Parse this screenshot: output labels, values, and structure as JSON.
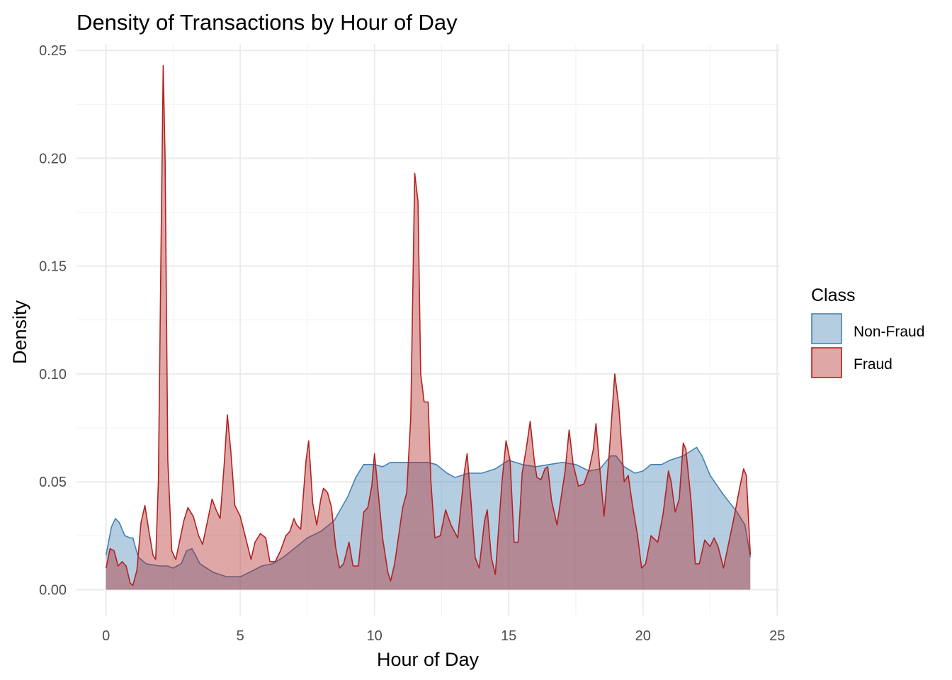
{
  "chart_data": {
    "type": "area",
    "title": "Density of Transactions by Hour of Day",
    "xlabel": "Hour of Day",
    "ylabel": "Density",
    "xlim": [
      -1.1,
      25.1
    ],
    "ylim": [
      -0.012,
      0.253
    ],
    "x_ticks": [
      0,
      5,
      10,
      15,
      20,
      25
    ],
    "x_tick_labels": [
      "0",
      "5",
      "10",
      "15",
      "20",
      "25"
    ],
    "y_ticks": [
      0,
      0.05,
      0.1,
      0.15,
      0.2,
      0.25
    ],
    "y_tick_labels": [
      "0.00",
      "0.05",
      "0.10",
      "0.15",
      "0.20",
      "0.25"
    ],
    "grid": true,
    "legend": {
      "title": "Class",
      "position": "right"
    },
    "series": [
      {
        "name": "Non-Fraud",
        "fill": "#4682b4",
        "stroke": "#4682b4",
        "points": [
          [
            0,
            0.016
          ],
          [
            0.2,
            0.029
          ],
          [
            0.35,
            0.033
          ],
          [
            0.5,
            0.031
          ],
          [
            0.7,
            0.025
          ],
          [
            0.9,
            0.024
          ],
          [
            1.0,
            0.024
          ],
          [
            1.2,
            0.015
          ],
          [
            1.5,
            0.012
          ],
          [
            2.0,
            0.011
          ],
          [
            2.3,
            0.011
          ],
          [
            2.5,
            0.01
          ],
          [
            2.8,
            0.012
          ],
          [
            3.0,
            0.018
          ],
          [
            3.2,
            0.019
          ],
          [
            3.5,
            0.012
          ],
          [
            4.0,
            0.008
          ],
          [
            4.5,
            0.006
          ],
          [
            5.0,
            0.006
          ],
          [
            5.5,
            0.009
          ],
          [
            5.8,
            0.011
          ],
          [
            6.2,
            0.012
          ],
          [
            6.6,
            0.015
          ],
          [
            7.0,
            0.019
          ],
          [
            7.5,
            0.024
          ],
          [
            8.0,
            0.027
          ],
          [
            8.5,
            0.032
          ],
          [
            9.0,
            0.043
          ],
          [
            9.3,
            0.052
          ],
          [
            9.6,
            0.058
          ],
          [
            10.0,
            0.058
          ],
          [
            10.3,
            0.057
          ],
          [
            10.6,
            0.059
          ],
          [
            11.0,
            0.059
          ],
          [
            11.5,
            0.059
          ],
          [
            12.0,
            0.059
          ],
          [
            12.3,
            0.058
          ],
          [
            12.7,
            0.054
          ],
          [
            13.0,
            0.052
          ],
          [
            13.5,
            0.054
          ],
          [
            14.0,
            0.054
          ],
          [
            14.5,
            0.056
          ],
          [
            15.0,
            0.06
          ],
          [
            15.5,
            0.058
          ],
          [
            16.0,
            0.057
          ],
          [
            16.5,
            0.058
          ],
          [
            17.0,
            0.059
          ],
          [
            17.5,
            0.058
          ],
          [
            18.0,
            0.055
          ],
          [
            18.4,
            0.056
          ],
          [
            18.8,
            0.062
          ],
          [
            19.0,
            0.062
          ],
          [
            19.3,
            0.057
          ],
          [
            19.7,
            0.054
          ],
          [
            20.0,
            0.055
          ],
          [
            20.3,
            0.058
          ],
          [
            20.7,
            0.058
          ],
          [
            21.0,
            0.06
          ],
          [
            21.5,
            0.062
          ],
          [
            22.0,
            0.066
          ],
          [
            22.2,
            0.062
          ],
          [
            22.5,
            0.053
          ],
          [
            23.0,
            0.044
          ],
          [
            23.5,
            0.036
          ],
          [
            23.8,
            0.03
          ],
          [
            24.0,
            0.015
          ]
        ]
      },
      {
        "name": "Fraud",
        "fill": "#b22222",
        "stroke": "#b22222",
        "points": [
          [
            0,
            0.01
          ],
          [
            0.15,
            0.019
          ],
          [
            0.3,
            0.018
          ],
          [
            0.45,
            0.011
          ],
          [
            0.6,
            0.013
          ],
          [
            0.75,
            0.011
          ],
          [
            0.9,
            0.003
          ],
          [
            1.0,
            0.002
          ],
          [
            1.15,
            0.009
          ],
          [
            1.3,
            0.031
          ],
          [
            1.45,
            0.039
          ],
          [
            1.6,
            0.027
          ],
          [
            1.75,
            0.016
          ],
          [
            1.85,
            0.014
          ],
          [
            1.95,
            0.05
          ],
          [
            2.05,
            0.16
          ],
          [
            2.13,
            0.243
          ],
          [
            2.2,
            0.2
          ],
          [
            2.3,
            0.06
          ],
          [
            2.45,
            0.018
          ],
          [
            2.6,
            0.014
          ],
          [
            2.75,
            0.023
          ],
          [
            2.9,
            0.032
          ],
          [
            3.05,
            0.038
          ],
          [
            3.25,
            0.034
          ],
          [
            3.45,
            0.025
          ],
          [
            3.6,
            0.021
          ],
          [
            3.8,
            0.033
          ],
          [
            3.95,
            0.042
          ],
          [
            4.1,
            0.037
          ],
          [
            4.25,
            0.033
          ],
          [
            4.4,
            0.058
          ],
          [
            4.52,
            0.081
          ],
          [
            4.65,
            0.064
          ],
          [
            4.8,
            0.039
          ],
          [
            5.0,
            0.034
          ],
          [
            5.2,
            0.024
          ],
          [
            5.4,
            0.014
          ],
          [
            5.55,
            0.022
          ],
          [
            5.75,
            0.026
          ],
          [
            5.95,
            0.024
          ],
          [
            6.1,
            0.013
          ],
          [
            6.3,
            0.013
          ],
          [
            6.5,
            0.018
          ],
          [
            6.7,
            0.025
          ],
          [
            6.85,
            0.027
          ],
          [
            7.0,
            0.033
          ],
          [
            7.1,
            0.03
          ],
          [
            7.25,
            0.028
          ],
          [
            7.45,
            0.06
          ],
          [
            7.55,
            0.069
          ],
          [
            7.7,
            0.04
          ],
          [
            7.85,
            0.03
          ],
          [
            8.0,
            0.042
          ],
          [
            8.1,
            0.047
          ],
          [
            8.25,
            0.045
          ],
          [
            8.4,
            0.038
          ],
          [
            8.55,
            0.02
          ],
          [
            8.7,
            0.01
          ],
          [
            8.85,
            0.012
          ],
          [
            9.05,
            0.022
          ],
          [
            9.2,
            0.011
          ],
          [
            9.4,
            0.011
          ],
          [
            9.6,
            0.036
          ],
          [
            9.75,
            0.038
          ],
          [
            9.9,
            0.048
          ],
          [
            10.0,
            0.063
          ],
          [
            10.1,
            0.05
          ],
          [
            10.3,
            0.024
          ],
          [
            10.5,
            0.008
          ],
          [
            10.6,
            0.004
          ],
          [
            10.75,
            0.012
          ],
          [
            10.9,
            0.025
          ],
          [
            11.05,
            0.038
          ],
          [
            11.2,
            0.045
          ],
          [
            11.35,
            0.08
          ],
          [
            11.5,
            0.193
          ],
          [
            11.62,
            0.18
          ],
          [
            11.72,
            0.1
          ],
          [
            11.85,
            0.087
          ],
          [
            12.0,
            0.087
          ],
          [
            12.1,
            0.05
          ],
          [
            12.25,
            0.024
          ],
          [
            12.45,
            0.025
          ],
          [
            12.65,
            0.037
          ],
          [
            12.85,
            0.03
          ],
          [
            13.1,
            0.024
          ],
          [
            13.35,
            0.055
          ],
          [
            13.45,
            0.063
          ],
          [
            13.6,
            0.04
          ],
          [
            13.75,
            0.015
          ],
          [
            13.9,
            0.01
          ],
          [
            14.1,
            0.032
          ],
          [
            14.2,
            0.037
          ],
          [
            14.35,
            0.015
          ],
          [
            14.5,
            0.007
          ],
          [
            14.75,
            0.05
          ],
          [
            14.9,
            0.069
          ],
          [
            15.05,
            0.06
          ],
          [
            15.2,
            0.022
          ],
          [
            15.35,
            0.022
          ],
          [
            15.5,
            0.054
          ],
          [
            15.65,
            0.065
          ],
          [
            15.8,
            0.078
          ],
          [
            15.95,
            0.06
          ],
          [
            16.05,
            0.052
          ],
          [
            16.2,
            0.051
          ],
          [
            16.35,
            0.056
          ],
          [
            16.45,
            0.057
          ],
          [
            16.6,
            0.041
          ],
          [
            16.8,
            0.03
          ],
          [
            17.1,
            0.055
          ],
          [
            17.25,
            0.074
          ],
          [
            17.4,
            0.058
          ],
          [
            17.6,
            0.048
          ],
          [
            17.8,
            0.049
          ],
          [
            18.0,
            0.056
          ],
          [
            18.15,
            0.065
          ],
          [
            18.25,
            0.077
          ],
          [
            18.4,
            0.055
          ],
          [
            18.55,
            0.034
          ],
          [
            18.75,
            0.064
          ],
          [
            18.95,
            0.1
          ],
          [
            19.1,
            0.085
          ],
          [
            19.3,
            0.05
          ],
          [
            19.45,
            0.053
          ],
          [
            19.6,
            0.04
          ],
          [
            19.8,
            0.025
          ],
          [
            19.95,
            0.01
          ],
          [
            20.1,
            0.012
          ],
          [
            20.3,
            0.025
          ],
          [
            20.55,
            0.022
          ],
          [
            20.75,
            0.035
          ],
          [
            20.95,
            0.055
          ],
          [
            21.05,
            0.05
          ],
          [
            21.2,
            0.036
          ],
          [
            21.35,
            0.042
          ],
          [
            21.5,
            0.068
          ],
          [
            21.6,
            0.065
          ],
          [
            21.8,
            0.04
          ],
          [
            21.95,
            0.012
          ],
          [
            22.1,
            0.012
          ],
          [
            22.3,
            0.023
          ],
          [
            22.5,
            0.02
          ],
          [
            22.65,
            0.024
          ],
          [
            22.8,
            0.02
          ],
          [
            23.0,
            0.01
          ],
          [
            23.2,
            0.022
          ],
          [
            23.4,
            0.034
          ],
          [
            23.6,
            0.047
          ],
          [
            23.75,
            0.056
          ],
          [
            23.85,
            0.053
          ],
          [
            24.0,
            0.016
          ]
        ]
      }
    ]
  }
}
